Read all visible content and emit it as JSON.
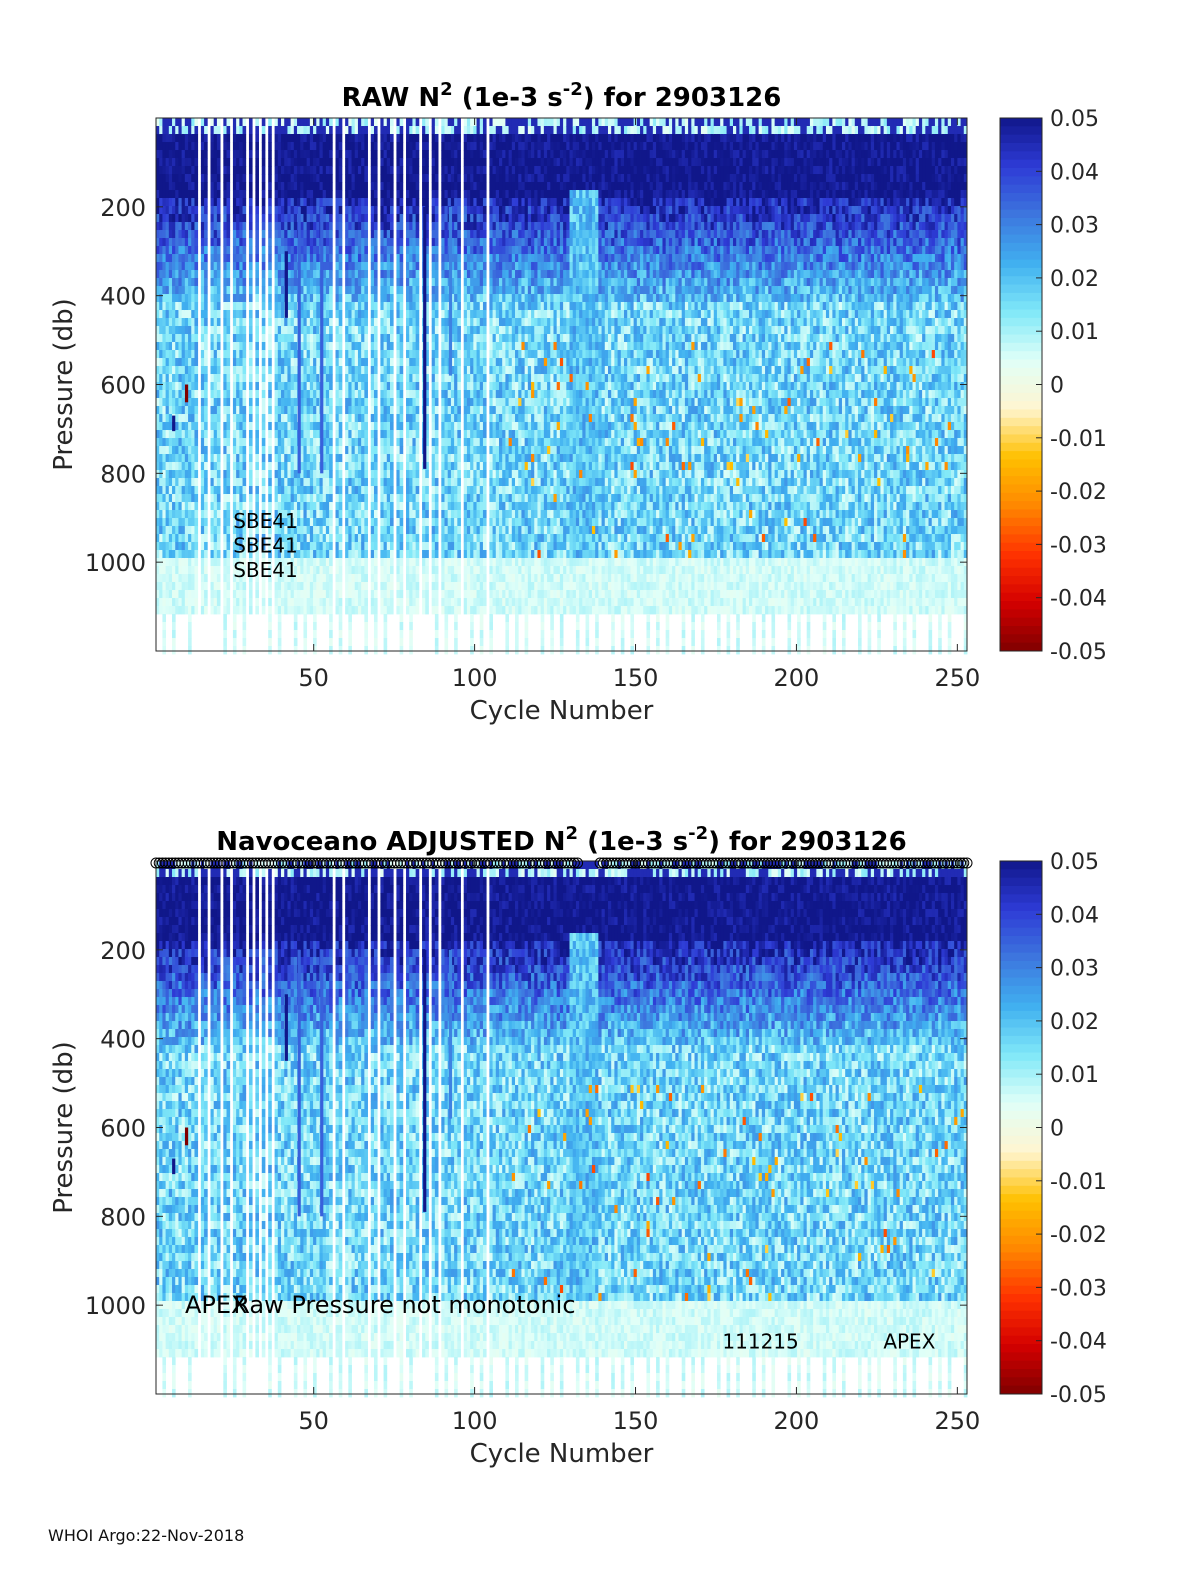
{
  "footer": "WHOI Argo:22-Nov-2018",
  "colors": {
    "colormap": [
      "#800000",
      "#d40000",
      "#ff3300",
      "#ff8800",
      "#ffc000",
      "#fff5d0",
      "#e0fff8",
      "#80e8f8",
      "#40b0f0",
      "#3d76de",
      "#2e3bd6",
      "#10178a"
    ],
    "gap": "#ffffff",
    "markers": "#000000"
  },
  "chart_data": [
    {
      "type": "heatmap",
      "title_parts": {
        "lead": "RAW N",
        "sup1": "2",
        "mid": " (1e-3 s",
        "sup2": "-2",
        "tail": ") for 2903126"
      },
      "xlabel": "Cycle Number",
      "ylabel": "Pressure (db)",
      "xlim": [
        1,
        253
      ],
      "ylim": [
        0,
        1200
      ],
      "y_reversed": true,
      "xticks": [
        50,
        100,
        150,
        200,
        250
      ],
      "yticks": [
        200,
        400,
        600,
        800,
        1000
      ],
      "colorbar": {
        "range": [
          -0.05,
          0.05
        ],
        "ticks": [
          "0.05",
          "0.04",
          "0.03",
          "0.02",
          "0.01",
          "0",
          "-0.01",
          "-0.02",
          "-0.03",
          "-0.04",
          "-0.05"
        ]
      },
      "annotations": [
        {
          "text": "SBE41",
          "x": 25,
          "y": 905
        },
        {
          "text": "SBE41",
          "x": 25,
          "y": 960
        },
        {
          "text": "SBE41",
          "x": 25,
          "y": 1015
        }
      ],
      "missing_cycles": [
        14,
        17,
        21,
        24,
        29,
        31,
        33,
        35,
        37,
        56,
        59,
        67,
        70,
        75,
        78,
        83,
        86,
        89,
        96,
        104
      ],
      "deep_streaks": [
        {
          "cycle": 41,
          "from": 300,
          "to": 450,
          "value": 0.05
        },
        {
          "cycle": 45,
          "from": 200,
          "to": 800,
          "value": 0.035
        },
        {
          "cycle": 52,
          "from": 200,
          "to": 800,
          "value": 0.035
        },
        {
          "cycle": 84,
          "from": 200,
          "to": 790,
          "value": 0.05
        },
        {
          "cycle": 92,
          "from": 200,
          "to": 580,
          "value": 0.03
        },
        {
          "cycle": 6,
          "from": 670,
          "to": 705,
          "value": 0.05
        },
        {
          "cycle": 10,
          "from": 600,
          "to": 640,
          "value": -0.05
        }
      ],
      "markers_row": false
    },
    {
      "type": "heatmap",
      "title_parts": {
        "lead": "Navoceano  ADJUSTED N",
        "sup1": "2",
        "mid": " (1e-3 s",
        "sup2": "-2",
        "tail": ") for 2903126"
      },
      "xlabel": "Cycle Number",
      "ylabel": "Pressure (db)",
      "xlim": [
        1,
        253
      ],
      "ylim": [
        0,
        1200
      ],
      "y_reversed": true,
      "xticks": [
        50,
        100,
        150,
        200,
        250
      ],
      "yticks": [
        200,
        400,
        600,
        800,
        1000
      ],
      "colorbar": {
        "range": [
          -0.05,
          0.05
        ],
        "ticks": [
          "0.05",
          "0.04",
          "0.03",
          "0.02",
          "0.01",
          "0",
          "-0.01",
          "-0.02",
          "-0.03",
          "-0.04",
          "-0.05"
        ]
      },
      "annotations": [
        {
          "text": "APEX",
          "x": 10,
          "y": 1000,
          "size": "large"
        },
        {
          "text": "Raw Pressure not monotonic",
          "x": 25,
          "y": 1000,
          "size": "large"
        },
        {
          "text": "111215",
          "x": 177,
          "y": 1080
        },
        {
          "text": "APEX",
          "x": 227,
          "y": 1080
        }
      ],
      "missing_cycles": [
        14,
        17,
        21,
        24,
        29,
        31,
        33,
        35,
        37,
        56,
        59,
        67,
        70,
        75,
        78,
        83,
        86,
        89,
        96,
        104
      ],
      "deep_streaks": [
        {
          "cycle": 41,
          "from": 300,
          "to": 450,
          "value": 0.05
        },
        {
          "cycle": 45,
          "from": 200,
          "to": 800,
          "value": 0.035
        },
        {
          "cycle": 52,
          "from": 200,
          "to": 800,
          "value": 0.035
        },
        {
          "cycle": 84,
          "from": 200,
          "to": 790,
          "value": 0.05
        },
        {
          "cycle": 92,
          "from": 200,
          "to": 580,
          "value": 0.03
        },
        {
          "cycle": 6,
          "from": 670,
          "to": 705,
          "value": 0.05
        },
        {
          "cycle": 10,
          "from": 600,
          "to": 640,
          "value": -0.05
        }
      ],
      "markers_row": true
    }
  ]
}
